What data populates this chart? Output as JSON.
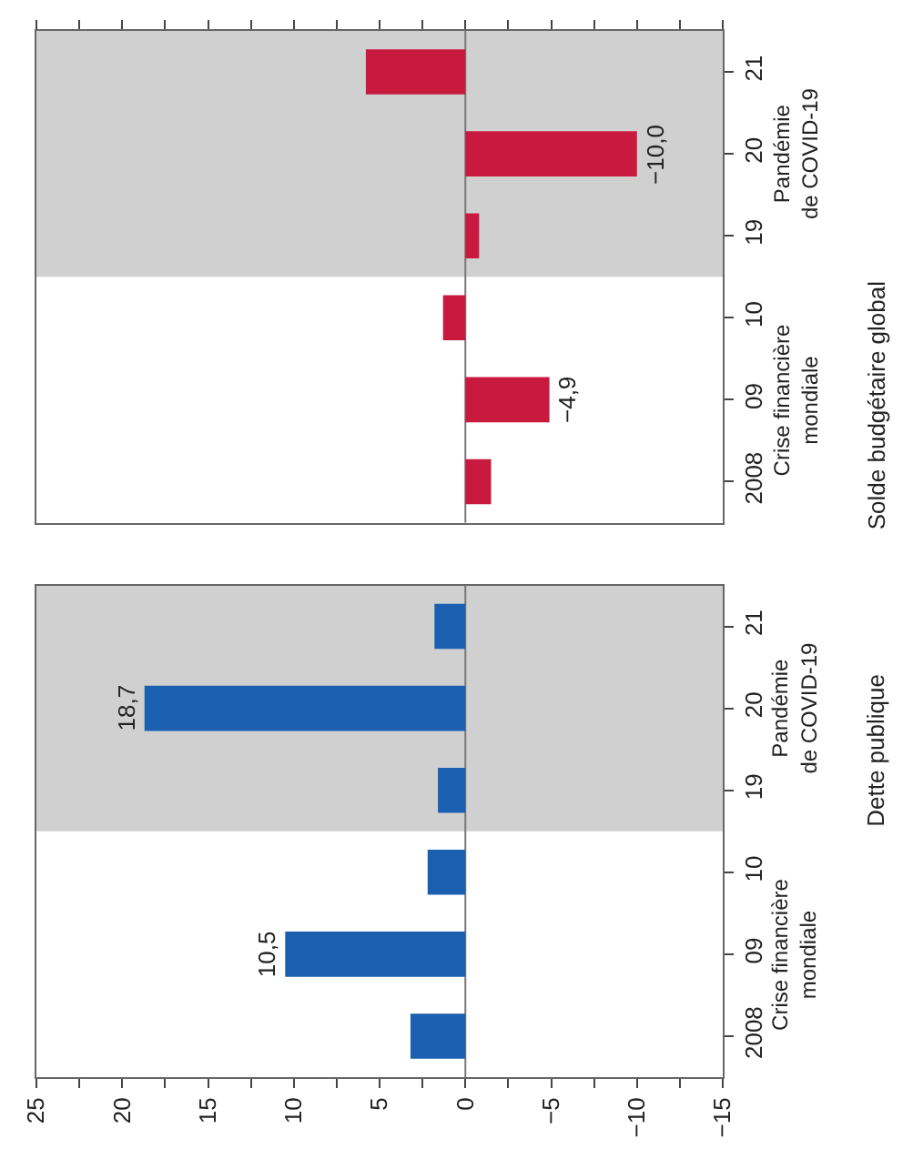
{
  "chart_data": [
    {
      "type": "bar",
      "orientation": "horizontal",
      "ylabel": "Dette publique",
      "categories": [
        "21",
        "20",
        "19",
        "10",
        "09",
        "2008"
      ],
      "values": [
        1.8,
        18.7,
        1.6,
        2.2,
        10.5,
        3.2
      ],
      "color": "#1a5fb0",
      "value_labels": [
        null,
        "18,7",
        null,
        null,
        "10,5",
        null
      ],
      "xlim": [
        25,
        -15
      ],
      "xticks": [
        25,
        {
          "value": 22.5,
          "label": null
        },
        20,
        {
          "value": 17.5,
          "label": null
        },
        15,
        {
          "value": 12.5,
          "label": null
        },
        10,
        {
          "value": 7.5,
          "label": null
        },
        5,
        {
          "value": 2.5,
          "label": null
        },
        0,
        {
          "value": -2.5,
          "label": null
        },
        -5,
        {
          "value": -7.5,
          "label": null
        },
        -10,
        {
          "value": -12.5,
          "label": null
        },
        -15
      ],
      "bands": [
        {
          "axis": "y",
          "from": "21",
          "to": "19",
          "color": "#d0d0d0"
        }
      ],
      "annotations": [
        "Crise financière\nmondiale",
        "Pandémie\nde COVID-19"
      ],
      "ref_lines": [
        {
          "axis": "x",
          "value": 0,
          "color": "#777777"
        }
      ],
      "grid": false
    },
    {
      "type": "bar",
      "orientation": "horizontal",
      "ylabel": "Solde budgétaire global",
      "categories": [
        "21",
        "20",
        "19",
        "10",
        "09",
        "2008"
      ],
      "values": [
        5.8,
        -10.0,
        -0.8,
        1.3,
        -4.9,
        -1.5
      ],
      "color": "#c8193f",
      "value_labels": [
        null,
        "−10,0",
        null,
        null,
        "−4,9",
        null
      ],
      "xlim": [
        25,
        -15
      ],
      "xticks": [
        25,
        {
          "value": 22.5,
          "label": null
        },
        20,
        {
          "value": 17.5,
          "label": null
        },
        15,
        {
          "value": 12.5,
          "label": null
        },
        10,
        {
          "value": 7.5,
          "label": null
        },
        5,
        {
          "value": 2.5,
          "label": null
        },
        0,
        {
          "value": -2.5,
          "label": null
        },
        -5,
        {
          "value": -7.5,
          "label": null
        },
        -10,
        {
          "value": -12.5,
          "label": null
        },
        -15
      ],
      "tick_labels": "y",
      "bands": [
        {
          "axis": "y",
          "from": "21",
          "to": "19",
          "color": "#d0d0d0"
        }
      ],
      "annotations": [
        "Crise financière\nmondiale",
        "Pandémie\nde COVID-19"
      ],
      "ref_lines": [
        {
          "axis": "x",
          "value": 0,
          "color": "#777777"
        }
      ],
      "grid": false
    }
  ]
}
